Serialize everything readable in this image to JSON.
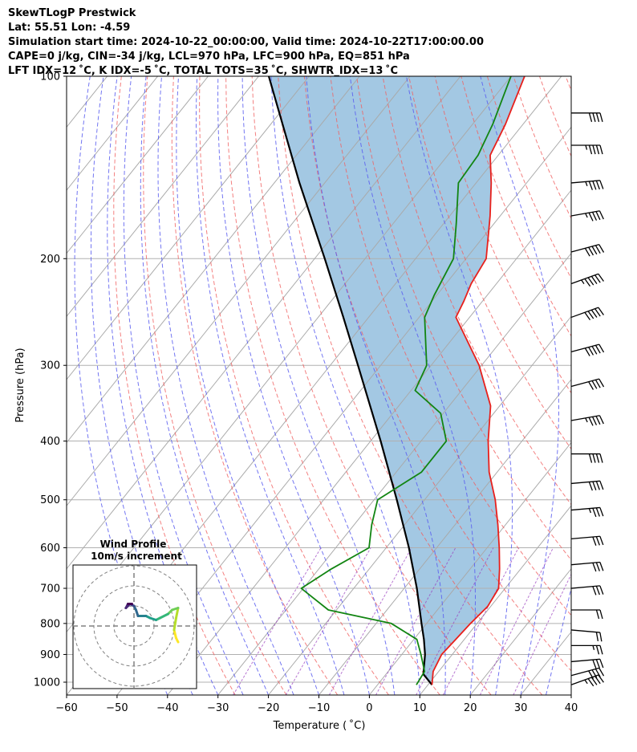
{
  "header": {
    "line1": "SkewTLogP Prestwick",
    "line2": "Lat: 55.51   Lon: -4.59",
    "line3": "Simulation start time: 2024-10-22_00:00:00, Valid time: 2024-10-22T17:00:00.00",
    "line4": "CAPE=0 j/kg, CIN=-34 j/kg, LCL=970 hPa, LFC=900 hPa, EQ=851 hPa",
    "line5": "LFT IDX=12 ˚C, K IDX=-5 ˚C, TOTAL TOTS=35 ˚C, SHWTR_IDX=13 ˚C"
  },
  "chart_data": {
    "type": "line",
    "skew": "skew-T log-p",
    "xlabel": "Temperature ( ˚C)",
    "ylabel": "Pressure (hPa)",
    "xlim": [
      -60,
      40
    ],
    "ylim": [
      1050,
      100
    ],
    "xticks": [
      "−60",
      "−50",
      "−40",
      "−30",
      "−20",
      "−10",
      "0",
      "10",
      "20",
      "30",
      "40"
    ],
    "yticks": [
      "100",
      "200",
      "300",
      "400",
      "500",
      "600",
      "700",
      "800",
      "900",
      "1000"
    ],
    "temperature": {
      "color": "#e8201c",
      "points": [
        [
          1010,
          10.8
        ],
        [
          960,
          8.9
        ],
        [
          900,
          7.9
        ],
        [
          850,
          8.3
        ],
        [
          800,
          8.7
        ],
        [
          750,
          9.4
        ],
        [
          700,
          8.7
        ],
        [
          650,
          5.8
        ],
        [
          600,
          2.4
        ],
        [
          550,
          -1.5
        ],
        [
          500,
          -6.0
        ],
        [
          450,
          -11.6
        ],
        [
          400,
          -16.7
        ],
        [
          350,
          -21.8
        ],
        [
          300,
          -30.5
        ],
        [
          250,
          -42.7
        ],
        [
          235,
          -43.7
        ],
        [
          220,
          -45.0
        ],
        [
          200,
          -46.0
        ],
        [
          170,
          -52.0
        ],
        [
          150,
          -57.0
        ],
        [
          135,
          -61.6
        ],
        [
          120,
          -63.5
        ],
        [
          100,
          -67.3
        ]
      ]
    },
    "dewpoint": {
      "color": "#128512",
      "points": [
        [
          1010,
          7.7
        ],
        [
          960,
          7.2
        ],
        [
          900,
          3.8
        ],
        [
          850,
          0.6
        ],
        [
          800,
          -7.0
        ],
        [
          760,
          -21.6
        ],
        [
          700,
          -30.4
        ],
        [
          650,
          -27.5
        ],
        [
          600,
          -23.4
        ],
        [
          550,
          -26.5
        ],
        [
          500,
          -29.3
        ],
        [
          450,
          -25.0
        ],
        [
          400,
          -25.0
        ],
        [
          360,
          -30.5
        ],
        [
          330,
          -39.2
        ],
        [
          300,
          -40.9
        ],
        [
          250,
          -48.9
        ],
        [
          230,
          -50.5
        ],
        [
          200,
          -52.5
        ],
        [
          175,
          -57.5
        ],
        [
          150,
          -63.5
        ],
        [
          135,
          -64.0
        ],
        [
          120,
          -66.0
        ],
        [
          100,
          -70.0
        ]
      ]
    },
    "parcel": {
      "color": "#000000",
      "points": [
        [
          1010,
          10.8
        ],
        [
          970,
          7.4
        ],
        [
          900,
          4.6
        ],
        [
          850,
          2.0
        ],
        [
          800,
          -1.0
        ],
        [
          700,
          -7.5
        ],
        [
          600,
          -15.5
        ],
        [
          500,
          -25.5
        ],
        [
          400,
          -38.0
        ],
        [
          300,
          -54.5
        ],
        [
          250,
          -65.0
        ],
        [
          200,
          -78.0
        ],
        [
          150,
          -95.0
        ],
        [
          100,
          -118.0
        ]
      ]
    },
    "shading": "parcel-temperature difference (blue fill)",
    "isotherms": "gray solid lines every 10 ˚C",
    "dry_adiabats": "red dashed",
    "moist_adiabats": "blue dashed",
    "mixing_ratio": "purple dashed",
    "wind_barbs": [
      {
        "p": 1010,
        "speed_kt": 45,
        "dir": 250
      },
      {
        "p": 975,
        "speed_kt": 40,
        "dir": 255
      },
      {
        "p": 925,
        "speed_kt": 30,
        "dir": 265
      },
      {
        "p": 870,
        "speed_kt": 25,
        "dir": 270
      },
      {
        "p": 820,
        "speed_kt": 20,
        "dir": 275
      },
      {
        "p": 760,
        "speed_kt": 20,
        "dir": 270
      },
      {
        "p": 700,
        "speed_kt": 30,
        "dir": 265
      },
      {
        "p": 640,
        "speed_kt": 30,
        "dir": 265
      },
      {
        "p": 580,
        "speed_kt": 30,
        "dir": 265
      },
      {
        "p": 520,
        "speed_kt": 35,
        "dir": 265
      },
      {
        "p": 470,
        "speed_kt": 40,
        "dir": 265
      },
      {
        "p": 420,
        "speed_kt": 40,
        "dir": 270
      },
      {
        "p": 370,
        "speed_kt": 45,
        "dir": 260
      },
      {
        "p": 325,
        "speed_kt": 40,
        "dir": 255
      },
      {
        "p": 285,
        "speed_kt": 50,
        "dir": 255
      },
      {
        "p": 250,
        "speed_kt": 50,
        "dir": 250
      },
      {
        "p": 220,
        "speed_kt": 55,
        "dir": 250
      },
      {
        "p": 195,
        "speed_kt": 50,
        "dir": 255
      },
      {
        "p": 170,
        "speed_kt": 45,
        "dir": 260
      },
      {
        "p": 150,
        "speed_kt": 45,
        "dir": 265
      },
      {
        "p": 130,
        "speed_kt": 45,
        "dir": 270
      },
      {
        "p": 115,
        "speed_kt": 40,
        "dir": 270
      }
    ],
    "hodograph": {
      "title": "Wind Profile",
      "subtitle": "10m/s increment",
      "rings_ms": [
        10,
        20,
        30
      ],
      "colormap": "viridis",
      "points": [
        [
          22,
          -8
        ],
        [
          21,
          -6
        ],
        [
          20,
          -2
        ],
        [
          21,
          4
        ],
        [
          22,
          9
        ],
        [
          19,
          8
        ],
        [
          17,
          6
        ],
        [
          13,
          4
        ],
        [
          11,
          3
        ],
        [
          8,
          4
        ],
        [
          6,
          5
        ],
        [
          4,
          5
        ],
        [
          2,
          5
        ],
        [
          1,
          8
        ],
        [
          0,
          10
        ],
        [
          -2,
          11
        ],
        [
          -3,
          10
        ],
        [
          -4,
          9
        ],
        [
          -3,
          11
        ],
        [
          -1,
          11
        ]
      ]
    }
  }
}
